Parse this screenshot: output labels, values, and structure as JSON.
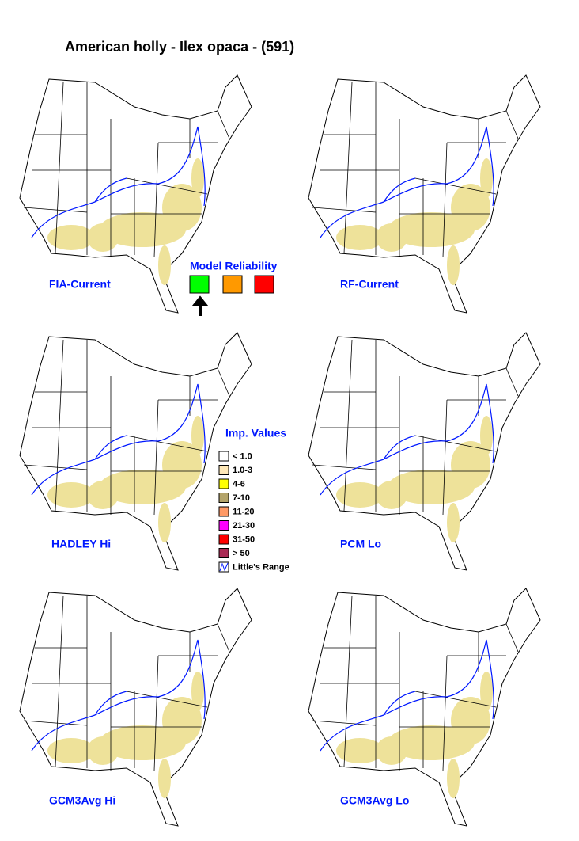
{
  "title": "American holly - Ilex opaca - (591)",
  "maps": [
    {
      "label": "FIA-Current"
    },
    {
      "label": "RF-Current"
    },
    {
      "label": "HADLEY Hi"
    },
    {
      "label": "PCM Lo"
    },
    {
      "label": "GCM3Avg Hi"
    },
    {
      "label": "GCM3Avg Lo"
    }
  ],
  "reliability": {
    "title": "Model Reliability"
  },
  "legend": {
    "title": "Imp. Values",
    "items": [
      {
        "label": "< 1.0",
        "color": "#ffffff"
      },
      {
        "label": "1.0-3",
        "color": "#ffe9b8"
      },
      {
        "label": "4-6",
        "color": "#ffff00"
      },
      {
        "label": "7-10",
        "color": "#b4a46a"
      },
      {
        "label": "11-20",
        "color": "#ff9a66"
      },
      {
        "label": "21-30",
        "color": "#ff00ff"
      },
      {
        "label": "31-50",
        "color": "#ff0000"
      },
      {
        "label": "> 50",
        "color": "#aa2a55"
      }
    ],
    "range_label": "Little's Range"
  }
}
